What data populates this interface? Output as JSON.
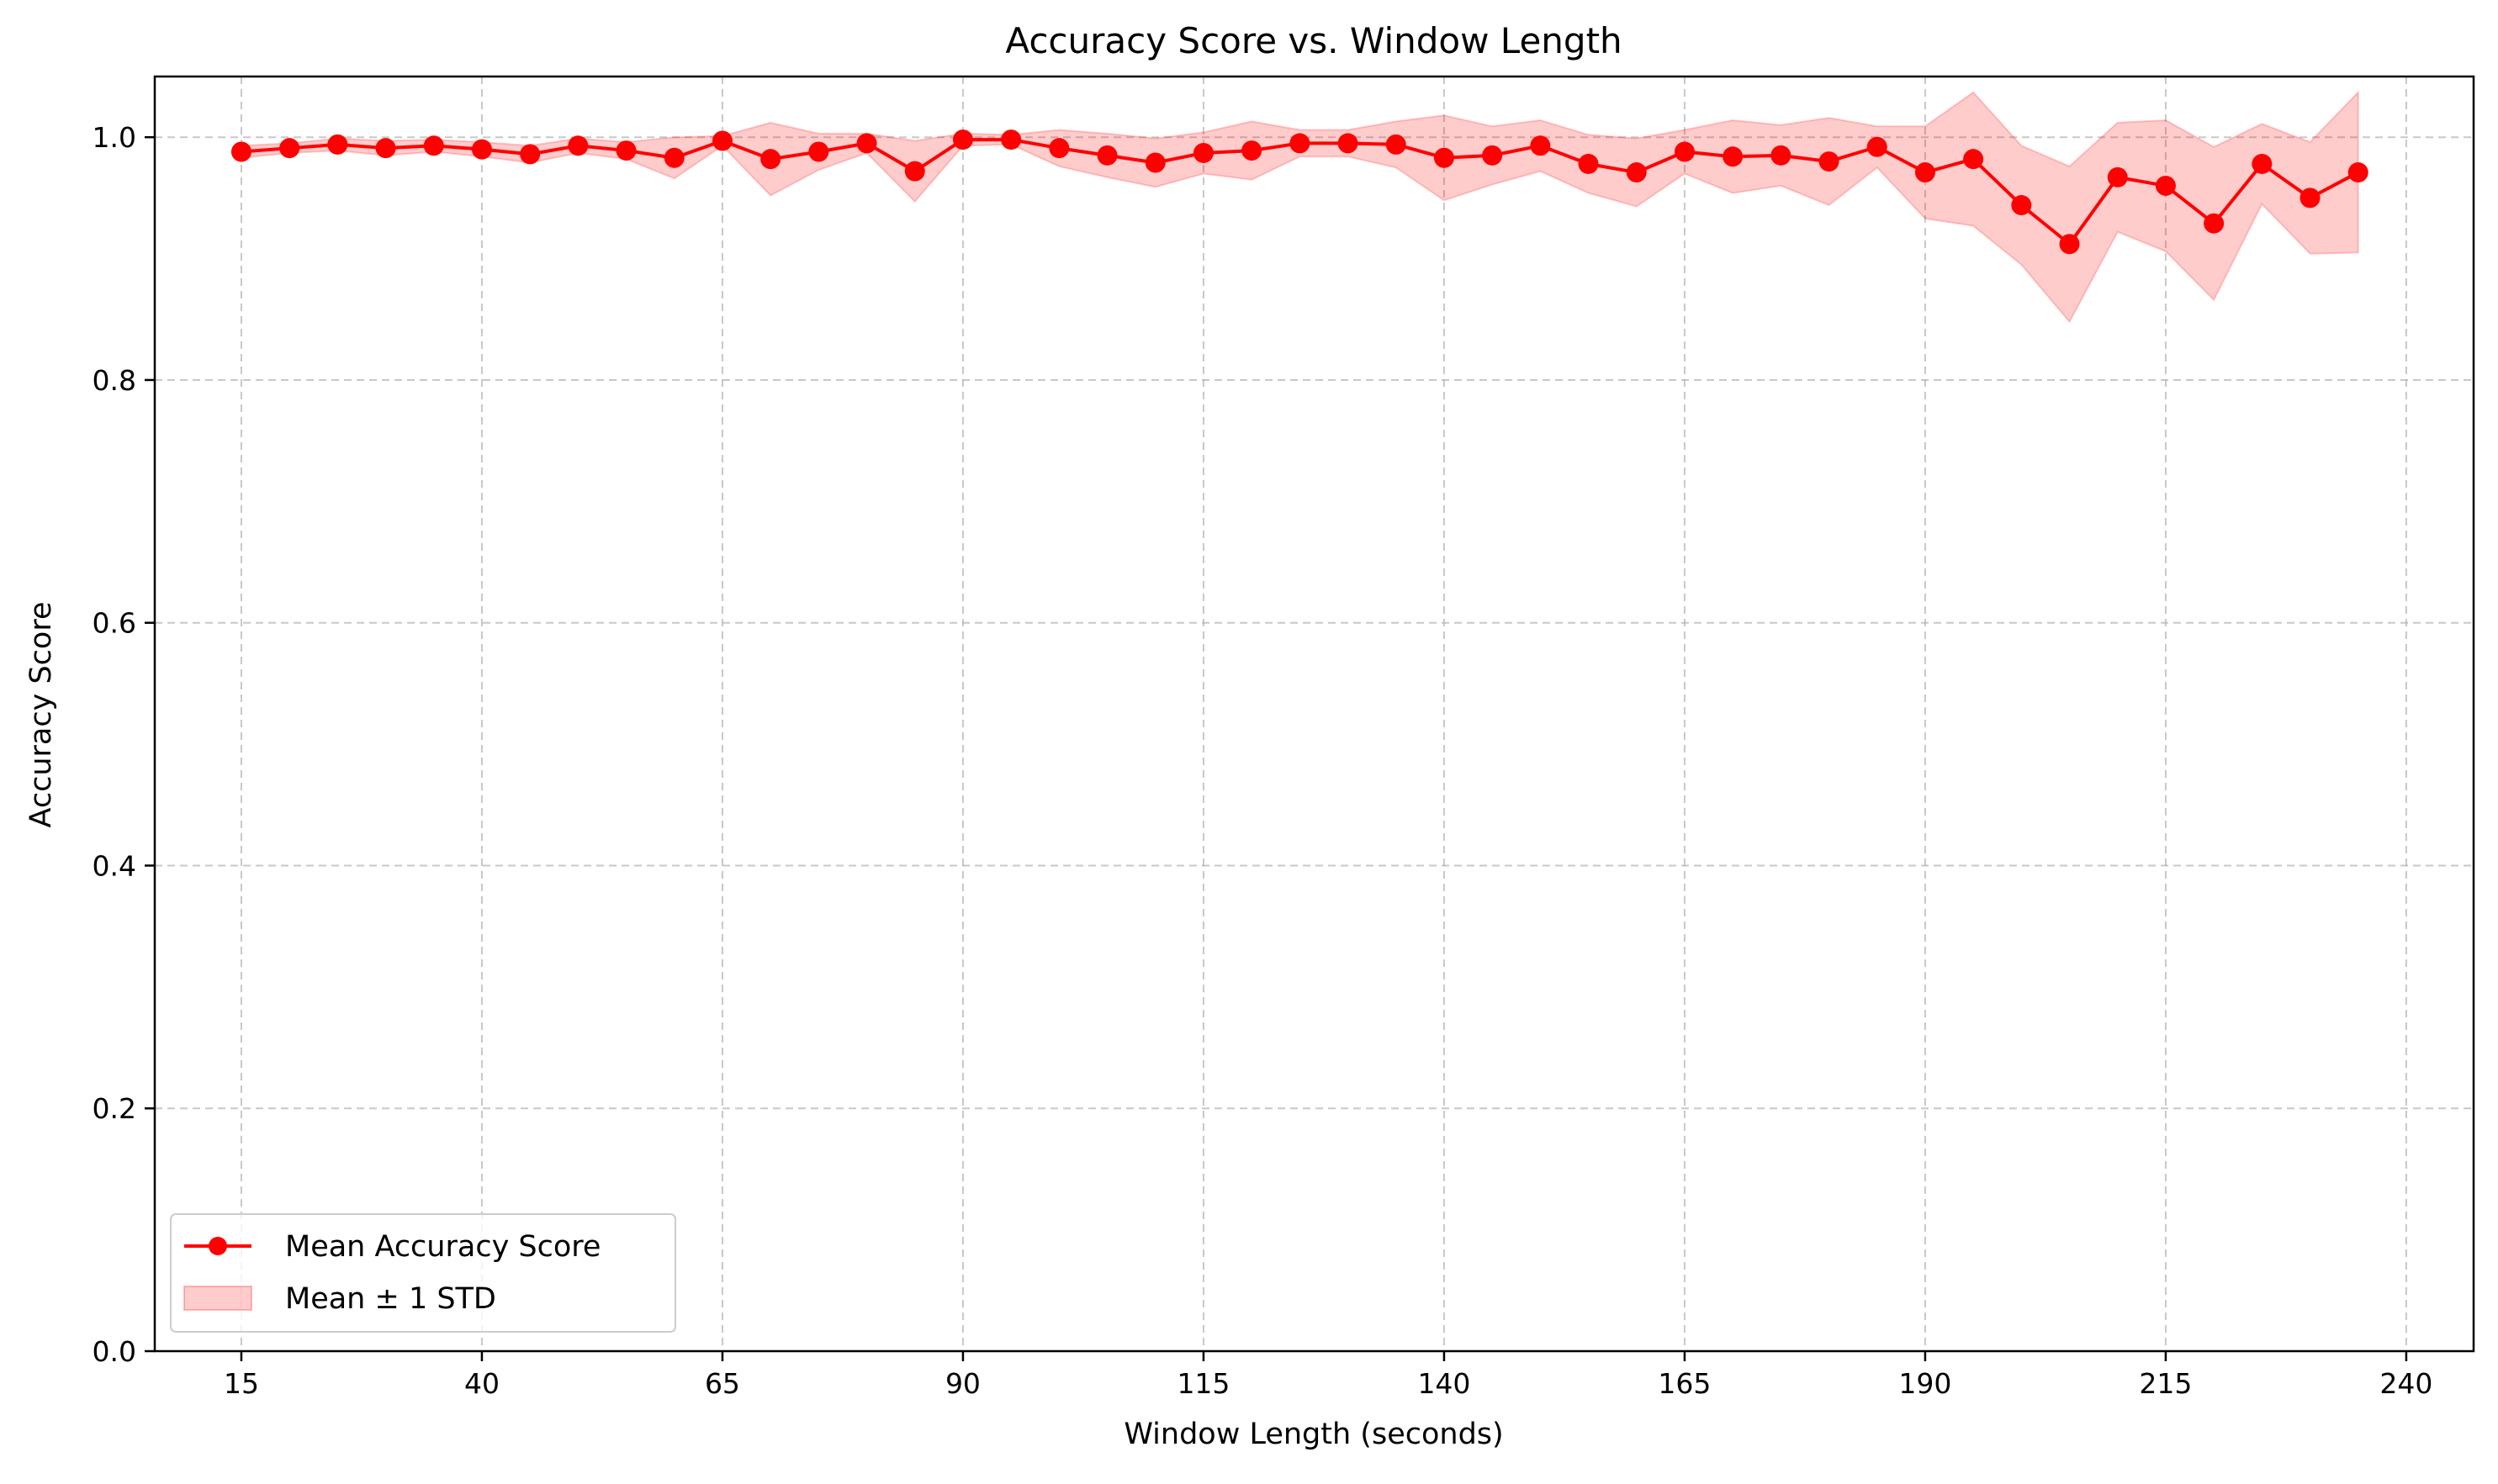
{
  "chart_data": {
    "type": "line",
    "title": "Accuracy Score vs. Window Length",
    "xlabel": "Window Length (seconds)",
    "ylabel": "Accuracy Score",
    "xlim": [
      6,
      247
    ],
    "ylim": [
      0.0,
      1.05
    ],
    "xticks": [
      15,
      40,
      65,
      90,
      115,
      140,
      165,
      190,
      215,
      240
    ],
    "yticks": [
      0.0,
      0.2,
      0.4,
      0.6,
      0.8,
      1.0
    ],
    "xtick_labels": [
      "15",
      "40",
      "65",
      "90",
      "115",
      "140",
      "165",
      "190",
      "215",
      "240"
    ],
    "ytick_labels": [
      "0.0",
      "0.2",
      "0.4",
      "0.6",
      "0.8",
      "1.0"
    ],
    "grid": true,
    "legend_position": "bottom-left",
    "colors": {
      "line": "#ff0000",
      "band_fill": "#ff0000",
      "grid": "#b0b0b0"
    },
    "series": [
      {
        "name": "Mean Accuracy Score",
        "x": [
          15,
          20,
          25,
          30,
          35,
          40,
          45,
          50,
          55,
          60,
          65,
          70,
          75,
          80,
          85,
          90,
          95,
          100,
          105,
          110,
          115,
          120,
          125,
          130,
          135,
          140,
          145,
          150,
          155,
          160,
          165,
          170,
          175,
          180,
          185,
          190,
          195,
          200,
          205,
          210,
          215,
          220,
          225,
          230,
          235
        ],
        "y": [
          0.988,
          0.991,
          0.994,
          0.991,
          0.993,
          0.99,
          0.986,
          0.993,
          0.989,
          0.983,
          0.997,
          0.982,
          0.988,
          0.995,
          0.972,
          0.998,
          0.998,
          0.991,
          0.985,
          0.979,
          0.987,
          0.989,
          0.995,
          0.995,
          0.994,
          0.983,
          0.985,
          0.993,
          0.978,
          0.971,
          0.988,
          0.984,
          0.985,
          0.98,
          0.992,
          0.971,
          0.982,
          0.944,
          0.912,
          0.967,
          0.96,
          0.929,
          0.978,
          0.95,
          0.971
        ]
      }
    ],
    "band": {
      "name": "Mean ± 1 STD",
      "upper": [
        0.993,
        0.995,
        0.999,
        0.997,
        0.998,
        0.996,
        0.993,
        0.999,
        0.996,
        1.0,
        1.001,
        1.012,
        1.003,
        1.003,
        0.997,
        1.003,
        1.002,
        1.006,
        1.003,
        0.999,
        1.004,
        1.013,
        1.006,
        1.006,
        1.013,
        1.018,
        1.009,
        1.014,
        1.002,
        0.999,
        1.006,
        1.014,
        1.01,
        1.016,
        1.009,
        1.009,
        1.037,
        0.993,
        0.976,
        1.012,
        1.014,
        0.992,
        1.011,
        0.996,
        1.037
      ],
      "lower": [
        0.983,
        0.987,
        0.989,
        0.985,
        0.988,
        0.984,
        0.979,
        0.987,
        0.982,
        0.966,
        0.993,
        0.952,
        0.973,
        0.987,
        0.947,
        0.993,
        0.994,
        0.976,
        0.967,
        0.959,
        0.97,
        0.965,
        0.984,
        0.984,
        0.975,
        0.948,
        0.961,
        0.972,
        0.954,
        0.943,
        0.97,
        0.954,
        0.96,
        0.944,
        0.975,
        0.933,
        0.927,
        0.895,
        0.848,
        0.922,
        0.906,
        0.866,
        0.945,
        0.904,
        0.905
      ]
    }
  }
}
